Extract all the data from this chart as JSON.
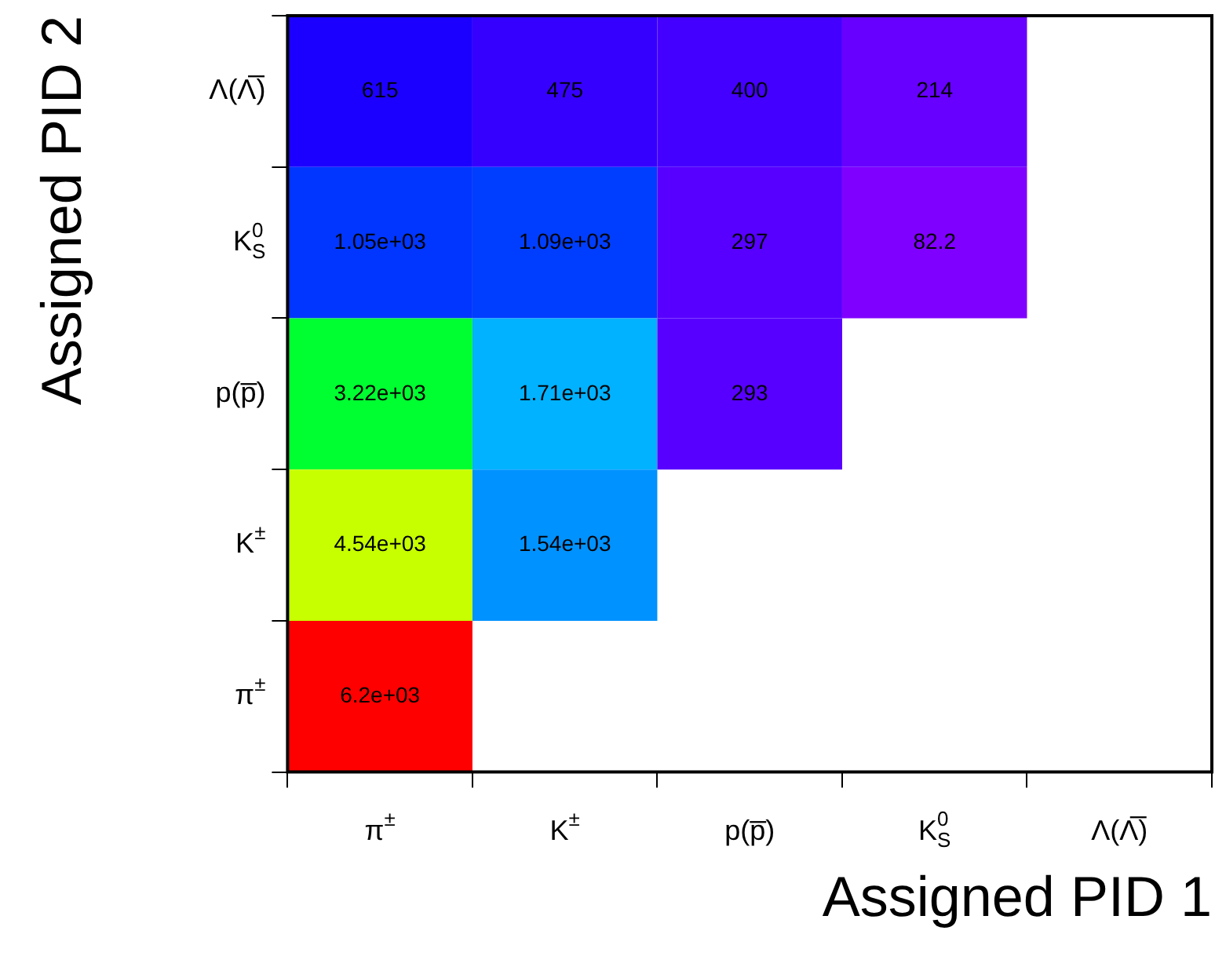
{
  "chart_data": {
    "type": "heatmap",
    "xlabel": "Assigned PID 1",
    "ylabel": "Assigned PID 2",
    "categories": [
      "π$^{±}$",
      "K$^{±}$",
      "p(p̅)",
      "K$_{S}$$^{0}$",
      "Λ(Λ̅)"
    ],
    "y_categories": [
      "Λ(Λ̅)",
      "K$_{S}$$^{0}$",
      "p(p̅)",
      "K$^{±}$",
      "π$^{±}$"
    ],
    "cells": [
      [
        615,
        475,
        400,
        214,
        null
      ],
      [
        1050,
        1090,
        297,
        82.2,
        null
      ],
      [
        3220,
        1710,
        293,
        null,
        null
      ],
      [
        4540,
        1540,
        null,
        null,
        null
      ],
      [
        6200,
        null,
        null,
        null,
        null
      ]
    ],
    "cell_labels": [
      [
        "615",
        "475",
        "400",
        "214",
        null
      ],
      [
        "1.05e+03",
        "1.09e+03",
        "297",
        "82.2",
        null
      ],
      [
        "3.22e+03",
        "1.71e+03",
        "293",
        null,
        null
      ],
      [
        "4.54e+03",
        "1.54e+03",
        null,
        null,
        null
      ],
      [
        "6.2e+03",
        null,
        null,
        null,
        null
      ]
    ]
  }
}
